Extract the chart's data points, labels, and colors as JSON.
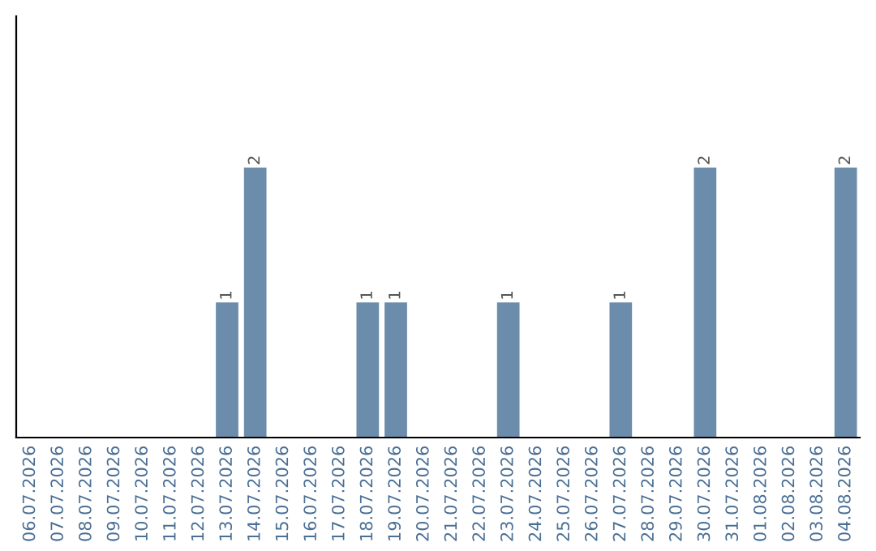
{
  "chart_data": {
    "type": "bar",
    "categories": [
      "06.07.2026",
      "07.07.2026",
      "08.07.2026",
      "09.07.2026",
      "10.07.2026",
      "11.07.2026",
      "12.07.2026",
      "13.07.2026",
      "14.07.2026",
      "15.07.2026",
      "16.07.2026",
      "17.07.2026",
      "18.07.2026",
      "19.07.2026",
      "20.07.2026",
      "21.07.2026",
      "22.07.2026",
      "23.07.2026",
      "24.07.2026",
      "25.07.2026",
      "26.07.2026",
      "27.07.2026",
      "28.07.2026",
      "29.07.2026",
      "30.07.2026",
      "31.07.2026",
      "01.08.2026",
      "02.08.2026",
      "03.08.2026",
      "04.08.2026"
    ],
    "values": [
      0,
      0,
      0,
      0,
      0,
      0,
      0,
      1,
      2,
      0,
      0,
      0,
      1,
      1,
      0,
      0,
      0,
      1,
      0,
      0,
      0,
      1,
      0,
      0,
      2,
      0,
      0,
      0,
      0,
      2
    ],
    "value_labels": [
      null,
      null,
      null,
      null,
      null,
      null,
      null,
      "1",
      "2",
      null,
      null,
      null,
      "1",
      "1",
      null,
      null,
      null,
      "1",
      null,
      null,
      null,
      "1",
      null,
      null,
      "2",
      null,
      null,
      null,
      null,
      "2"
    ],
    "color": "#6b8caa",
    "tick_labels": "x",
    "grid": false,
    "legend": false
  }
}
